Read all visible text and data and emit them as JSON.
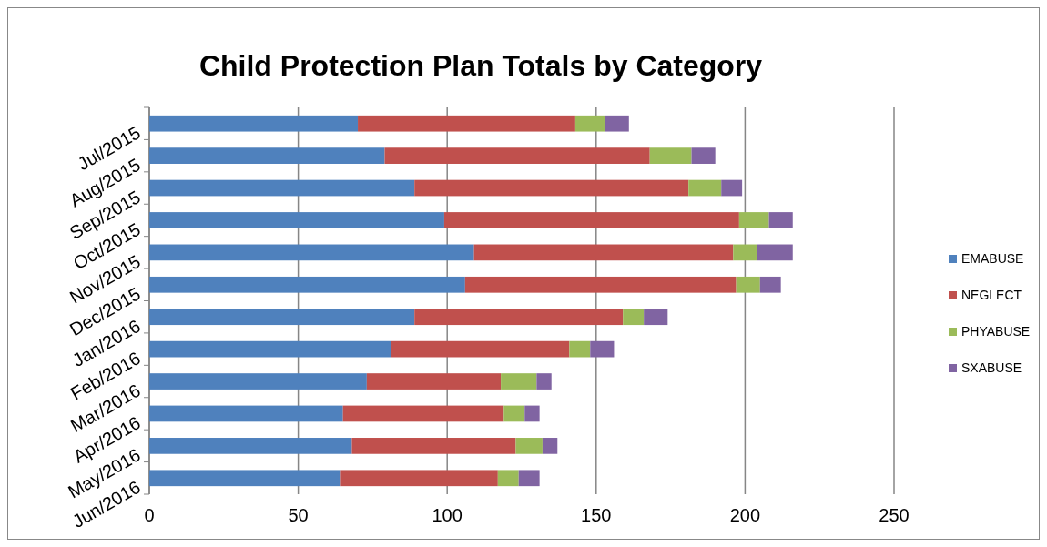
{
  "chart_data": {
    "type": "bar",
    "orientation": "horizontal",
    "stacked": true,
    "title": "Child Protection Plan Totals by Category",
    "categories": [
      "Jul/2015",
      "Aug/2015",
      "Sep/2015",
      "Oct/2015",
      "Nov/2015",
      "Dec/2015",
      "Jan/2016",
      "Feb/2016",
      "Mar/2016",
      "Apr/2016",
      "May/2016",
      "Jun/2016"
    ],
    "series": [
      {
        "name": "EMABUSE",
        "color": "#4f81bd",
        "values": [
          70,
          79,
          89,
          99,
          109,
          106,
          89,
          81,
          73,
          65,
          68,
          64
        ]
      },
      {
        "name": "NEGLECT",
        "color": "#c0504d",
        "values": [
          73,
          89,
          92,
          99,
          87,
          91,
          70,
          60,
          45,
          54,
          55,
          53
        ]
      },
      {
        "name": "PHYABUSE",
        "color": "#9bbb59",
        "values": [
          10,
          14,
          11,
          10,
          8,
          8,
          7,
          7,
          12,
          7,
          9,
          7
        ]
      },
      {
        "name": "SXABUSE",
        "color": "#8064a2",
        "values": [
          8,
          8,
          7,
          8,
          12,
          7,
          8,
          8,
          5,
          5,
          5,
          7
        ]
      }
    ],
    "xlim": [
      0,
      250
    ],
    "xticks": [
      0,
      50,
      100,
      150,
      200,
      250
    ],
    "grid": "x",
    "legend": "right"
  }
}
